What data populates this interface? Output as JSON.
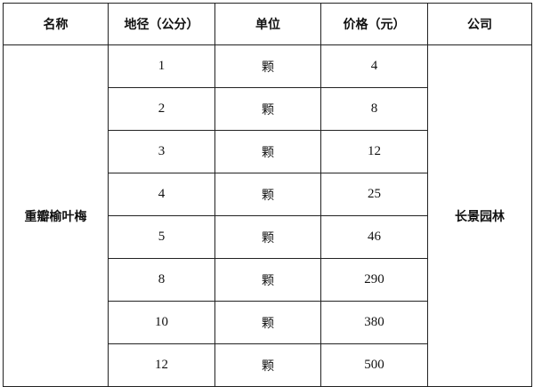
{
  "table": {
    "headers": [
      "名称",
      "地径（公分）",
      "单位",
      "价格（元）",
      "公司"
    ],
    "name": "重瓣榆叶梅",
    "company": "长景园林",
    "rows": [
      {
        "diameter": "1",
        "unit": "颗",
        "price": "4"
      },
      {
        "diameter": "2",
        "unit": "颗",
        "price": "8"
      },
      {
        "diameter": "3",
        "unit": "颗",
        "price": "12"
      },
      {
        "diameter": "4",
        "unit": "颗",
        "price": "25"
      },
      {
        "diameter": "5",
        "unit": "颗",
        "price": "46"
      },
      {
        "diameter": "8",
        "unit": "颗",
        "price": "290"
      },
      {
        "diameter": "10",
        "unit": "颗",
        "price": "380"
      },
      {
        "diameter": "12",
        "unit": "颗",
        "price": "500"
      }
    ]
  }
}
